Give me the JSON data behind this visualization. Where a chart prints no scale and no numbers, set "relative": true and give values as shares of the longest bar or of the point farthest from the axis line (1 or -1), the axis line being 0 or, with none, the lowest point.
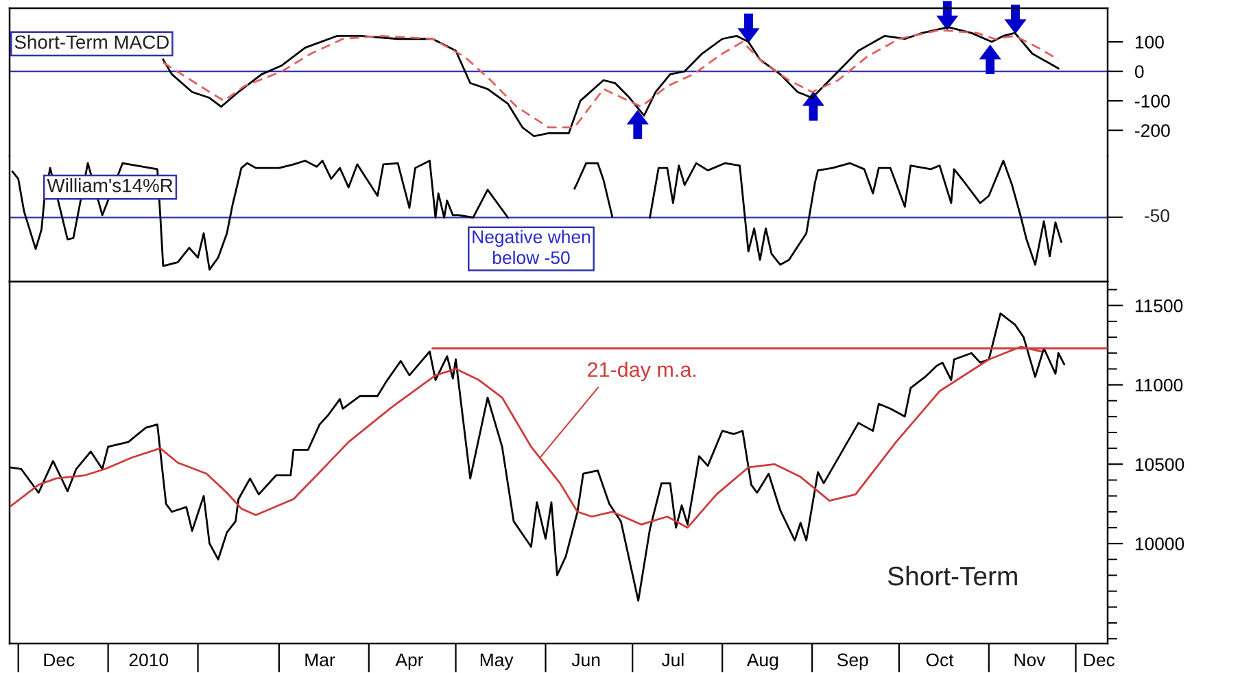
{
  "chart_data": [
    {
      "type": "line",
      "xlim": [
        "2009-11-28",
        "2010-12-12"
      ],
      "ylim": [
        -288,
        214
      ],
      "yticks": [
        100,
        0,
        -100,
        -200
      ],
      "tick_labels": "y",
      "grid": false,
      "annotations": [
        "Short-Term MACD"
      ],
      "ref_lines": [
        {
          "axis": "y",
          "value": 0,
          "color": "#3333aa"
        }
      ],
      "series": [
        {
          "color": "#000000",
          "line_style": "solid",
          "x": [
            "2010-01-20",
            "2010-01-23",
            "2010-01-30",
            "2010-02-05",
            "2010-02-09",
            "2010-02-15",
            "2010-02-23",
            "2010-03-02",
            "2010-03-10",
            "2010-03-21",
            "2010-03-29",
            "2010-04-11",
            "2010-04-23",
            "2010-05-01",
            "2010-05-06",
            "2010-05-12",
            "2010-05-19",
            "2010-05-24",
            "2010-05-28",
            "2010-06-02",
            "2010-06-09",
            "2010-06-13",
            "2010-06-21",
            "2010-06-25",
            "2010-06-30",
            "2010-07-05",
            "2010-07-09",
            "2010-07-14",
            "2010-07-19",
            "2010-07-25",
            "2010-08-01",
            "2010-08-06",
            "2010-08-10",
            "2010-08-14",
            "2010-08-21",
            "2010-08-27",
            "2010-09-01",
            "2010-09-08",
            "2010-09-17",
            "2010-09-26",
            "2010-10-03",
            "2010-10-09",
            "2010-10-18",
            "2010-10-26",
            "2010-11-02",
            "2010-11-06",
            "2010-11-10",
            "2010-11-16",
            "2010-11-25"
          ],
          "values": [
            40,
            -10,
            -70,
            -90,
            -120,
            -70,
            -10,
            20,
            80,
            120,
            120,
            110,
            110,
            70,
            -40,
            -60,
            -110,
            -190,
            -220,
            -210,
            -210,
            -100,
            -30,
            -40,
            -90,
            -150,
            -70,
            -10,
            0,
            60,
            110,
            120,
            100,
            40,
            -10,
            -70,
            -90,
            -20,
            70,
            120,
            110,
            130,
            150,
            130,
            100,
            120,
            130,
            60,
            10
          ]
        },
        {
          "color": "#e06060",
          "line_style": "dashed",
          "x": [
            "2010-01-20",
            "2010-02-05",
            "2010-02-10",
            "2010-02-17",
            "2010-03-02",
            "2010-03-12",
            "2010-03-23",
            "2010-04-05",
            "2010-04-23",
            "2010-05-04",
            "2010-05-13",
            "2010-05-22",
            "2010-06-02",
            "2010-06-11",
            "2010-06-21",
            "2010-07-04",
            "2010-07-13",
            "2010-07-22",
            "2010-08-01",
            "2010-08-08",
            "2010-08-15",
            "2010-08-24",
            "2010-09-01",
            "2010-09-10",
            "2010-09-20",
            "2010-10-01",
            "2010-10-15",
            "2010-10-28",
            "2010-11-03",
            "2010-11-10",
            "2010-11-18",
            "2010-11-25"
          ],
          "values": [
            30,
            -70,
            -100,
            -50,
            0,
            60,
            110,
            120,
            110,
            50,
            -30,
            -120,
            -190,
            -190,
            -60,
            -120,
            -50,
            -10,
            60,
            100,
            30,
            -30,
            -70,
            -30,
            50,
            110,
            140,
            130,
            110,
            120,
            80,
            40
          ]
        }
      ]
    },
    {
      "type": "line",
      "relative": true,
      "xlim": [
        "2009-11-28",
        "2010-12-12"
      ],
      "tick_labels": false,
      "grid": false,
      "annotations": [
        "William's14%R",
        "Negative when\nbelow -50",
        "-50"
      ],
      "ref_lines": [
        {
          "axis": "y",
          "value": 0.53,
          "color": "#3333aa"
        }
      ],
      "series": [
        {
          "color": "#000000",
          "line_style": "solid",
          "x": [
            "2009-11-29",
            "2009-12-01",
            "2009-12-03",
            "2009-12-07",
            "2009-12-09",
            "2009-12-10",
            "2009-12-12",
            "2009-12-18",
            "2009-12-20",
            "2009-12-25",
            "2009-12-30",
            "2010-01-06",
            "2010-01-18",
            "2010-01-19",
            "2010-01-20",
            "2010-01-25",
            "2010-01-29",
            "2010-02-01",
            "2010-02-03",
            "2010-02-05",
            "2010-02-08",
            "2010-02-11",
            "2010-02-13",
            "2010-02-16",
            "2010-02-18",
            "2010-02-21",
            "2010-03-01",
            "2010-03-06",
            "2010-03-10",
            "2010-03-14",
            "2010-03-16",
            "2010-03-19",
            "2010-03-22",
            "2010-03-25",
            "2010-03-28",
            "2010-04-04",
            "2010-04-06",
            "2010-04-11",
            "2010-04-15",
            "2010-04-17",
            "2010-04-22",
            "2010-04-24",
            "2010-04-25",
            "2010-04-27",
            "2010-04-28",
            "2010-04-30",
            "2010-05-02",
            "2010-05-07",
            "2010-05-12",
            "2010-05-19",
            "2010-05-25",
            "2010-06-11",
            "2010-06-12",
            "2010-06-15",
            "2010-06-19",
            "2010-06-21",
            "2010-06-24",
            "2010-06-30",
            "2010-07-07",
            "2010-07-10",
            "2010-07-13",
            "2010-07-15",
            "2010-07-17",
            "2010-07-19",
            "2010-07-23",
            "2010-07-27",
            "2010-07-29",
            "2010-08-02",
            "2010-08-07",
            "2010-08-10",
            "2010-08-12",
            "2010-08-14",
            "2010-08-16",
            "2010-08-18",
            "2010-08-21",
            "2010-08-24",
            "2010-08-27",
            "2010-08-30",
            "2010-09-02",
            "2010-09-03",
            "2010-09-08",
            "2010-09-14",
            "2010-09-19",
            "2010-09-22",
            "2010-09-24",
            "2010-09-28",
            "2010-10-03",
            "2010-10-05",
            "2010-10-12",
            "2010-10-15",
            "2010-10-19",
            "2010-10-20",
            "2010-10-23",
            "2010-10-29",
            "2010-11-01",
            "2010-11-06",
            "2010-11-09",
            "2010-11-12",
            "2010-11-14",
            "2010-11-17",
            "2010-11-20",
            "2010-11-22",
            "2010-11-24",
            "2010-11-26"
          ],
          "values": [
            0.91,
            0.85,
            0.58,
            0.27,
            0.43,
            0.68,
            0.94,
            0.35,
            0.36,
            0.98,
            0.55,
            0.98,
            0.93,
            0.55,
            0.13,
            0.16,
            0.28,
            0.2,
            0.4,
            0.1,
            0.2,
            0.4,
            0.64,
            0.94,
            0.98,
            0.94,
            0.94,
            0.97,
            1,
            0.95,
            1,
            0.85,
            0.94,
            0.78,
            0.97,
            0.71,
            0.97,
            0.98,
            0.61,
            0.94,
            1,
            0.53,
            0.73,
            0.53,
            0.67,
            0.55,
            0.55,
            0.53,
            0.76,
            0.53,
            null,
            0.77,
            0.82,
            0.98,
            0.98,
            0.84,
            0.54,
            null,
            0.53,
            0.94,
            0.94,
            0.65,
            0.96,
            0.8,
            0.98,
            0.92,
            0.94,
            0.98,
            0.96,
            0.25,
            0.44,
            0.18,
            0.44,
            0.23,
            0.14,
            0.18,
            0.29,
            0.4,
            0.82,
            0.92,
            0.94,
            0.98,
            0.93,
            0.73,
            0.94,
            0.94,
            0.62,
            0.96,
            0.93,
            0.96,
            0.65,
            0.93,
            0.84,
            0.65,
            0.71,
            1,
            0.8,
            0.54,
            0.35,
            0.14,
            0.5,
            0.21,
            0.49,
            0.33
          ]
        }
      ]
    },
    {
      "type": "line",
      "xlim": [
        "2009-11-28",
        "2010-12-12"
      ],
      "ylim": [
        9370,
        11650
      ],
      "yticks": [
        10000,
        10500,
        11000,
        11500
      ],
      "xticks": [
        {
          "value": "2009-12-15",
          "label": "Dec"
        },
        {
          "value": "2010-01-15",
          "label": "2010"
        },
        {
          "value": "2010-03-15",
          "label": "Mar"
        },
        {
          "value": "2010-04-15",
          "label": "Apr"
        },
        {
          "value": "2010-05-15",
          "label": "May"
        },
        {
          "value": "2010-06-15",
          "label": "Jun"
        },
        {
          "value": "2010-07-15",
          "label": "Jul"
        },
        {
          "value": "2010-08-15",
          "label": "Aug"
        },
        {
          "value": "2010-09-15",
          "label": "Sep"
        },
        {
          "value": "2010-10-15",
          "label": "Oct"
        },
        {
          "value": "2010-11-15",
          "label": "Nov"
        },
        {
          "value": "2010-12-09",
          "label": "Dec"
        }
      ],
      "grid": false,
      "annotations": [
        {
          "text": "21-day m.a.",
          "x": "2010-05-30",
          "y": 10540
        },
        "Short-Term"
      ],
      "series": [
        {
          "color": "#000000",
          "line_style": "solid",
          "x": [
            "2009-11-28",
            "2009-12-02",
            "2009-12-08",
            "2009-12-13",
            "2009-12-18",
            "2009-12-21",
            "2009-12-26",
            "2009-12-30",
            "2010-01-01",
            "2010-01-08",
            "2010-01-14",
            "2010-01-18",
            "2010-01-21",
            "2010-01-23",
            "2010-01-28",
            "2010-01-30",
            "2010-02-03",
            "2010-02-05",
            "2010-02-08",
            "2010-02-11",
            "2010-02-14",
            "2010-02-15",
            "2010-02-19",
            "2010-02-22",
            "2010-02-28",
            "2010-03-05",
            "2010-03-06",
            "2010-03-11",
            "2010-03-15",
            "2010-03-18",
            "2010-03-22",
            "2010-03-23",
            "2010-03-29",
            "2010-04-04",
            "2010-04-07",
            "2010-04-12",
            "2010-04-15",
            "2010-04-22",
            "2010-04-24",
            "2010-04-28",
            "2010-04-30",
            "2010-05-01",
            "2010-05-06",
            "2010-05-12",
            "2010-05-17",
            "2010-05-21",
            "2010-05-27",
            "2010-05-29",
            "2010-06-01",
            "2010-06-03",
            "2010-06-05",
            "2010-06-08",
            "2010-06-12",
            "2010-06-14",
            "2010-06-19",
            "2010-06-23",
            "2010-06-27",
            "2010-07-03",
            "2010-07-07",
            "2010-07-11",
            "2010-07-14",
            "2010-07-16",
            "2010-07-18",
            "2010-07-20",
            "2010-07-24",
            "2010-07-27",
            "2010-08-01",
            "2010-08-05",
            "2010-08-08",
            "2010-08-11",
            "2010-08-13",
            "2010-08-17",
            "2010-08-21",
            "2010-08-26",
            "2010-08-28",
            "2010-08-30",
            "2010-09-03",
            "2010-09-05",
            "2010-09-11",
            "2010-09-17",
            "2010-09-22",
            "2010-09-24",
            "2010-09-28",
            "2010-10-03",
            "2010-10-05",
            "2010-10-10",
            "2010-10-14",
            "2010-10-16",
            "2010-10-19",
            "2010-10-20",
            "2010-10-26",
            "2010-10-29",
            "2010-11-01",
            "2010-11-05",
            "2010-11-10",
            "2010-11-13",
            "2010-11-17",
            "2010-11-20",
            "2010-11-24",
            "2010-11-25",
            "2010-11-27"
          ],
          "values": [
            10480,
            10470,
            10320,
            10520,
            10330,
            10470,
            10580,
            10470,
            10610,
            10640,
            10730,
            10750,
            10250,
            10200,
            10230,
            10080,
            10300,
            10000,
            9900,
            10070,
            10140,
            10280,
            10410,
            10310,
            10430,
            10430,
            10590,
            10590,
            10750,
            10810,
            10910,
            10850,
            10930,
            10930,
            11020,
            11150,
            11060,
            11210,
            11030,
            11180,
            11040,
            11160,
            10410,
            10920,
            10610,
            10140,
            9980,
            10260,
            10030,
            10260,
            9800,
            9920,
            10200,
            10440,
            10460,
            10250,
            10140,
            9640,
            10090,
            10380,
            10380,
            10100,
            10240,
            10120,
            10550,
            10490,
            10710,
            10690,
            10710,
            10370,
            10320,
            10440,
            10210,
            10020,
            10130,
            10020,
            10450,
            10380,
            10570,
            10760,
            10710,
            10880,
            10850,
            10800,
            10980,
            11050,
            11120,
            11140,
            11030,
            11160,
            11200,
            11140,
            11160,
            11450,
            11380,
            11300,
            11050,
            11230,
            11070,
            11200,
            11130
          ]
        },
        {
          "color": "#d03a3a",
          "line_style": "solid",
          "x": [
            "2009-11-28",
            "2009-12-08",
            "2009-12-14",
            "2009-12-24",
            "2009-12-31",
            "2010-01-09",
            "2010-01-19",
            "2010-01-25",
            "2010-02-04",
            "2010-02-11",
            "2010-02-16",
            "2010-02-21",
            "2010-03-06",
            "2010-03-14",
            "2010-03-25",
            "2010-04-09",
            "2010-04-24",
            "2010-05-01",
            "2010-05-09",
            "2010-05-17",
            "2010-05-27",
            "2010-06-06",
            "2010-06-12",
            "2010-06-17",
            "2010-06-24",
            "2010-07-04",
            "2010-07-13",
            "2010-07-20",
            "2010-07-30",
            "2010-08-10",
            "2010-08-19",
            "2010-08-28",
            "2010-09-07",
            "2010-09-16",
            "2010-09-30",
            "2010-10-15",
            "2010-11-01",
            "2010-11-12",
            "2010-11-19"
          ],
          "values": [
            10230,
            10370,
            10410,
            10430,
            10470,
            10540,
            10600,
            10510,
            10440,
            10320,
            10220,
            10180,
            10280,
            10430,
            10640,
            10860,
            11060,
            11100,
            11030,
            10920,
            10610,
            10380,
            10200,
            10170,
            10200,
            10120,
            10170,
            10100,
            10310,
            10480,
            10500,
            10420,
            10270,
            10310,
            10640,
            10960,
            11160,
            11240,
            11210
          ]
        },
        {
          "color": "#d03a3a",
          "line_style": "solid",
          "x": [
            "2010-04-23",
            "2010-12-12"
          ],
          "values": [
            11230,
            11230
          ]
        }
      ]
    }
  ]
}
